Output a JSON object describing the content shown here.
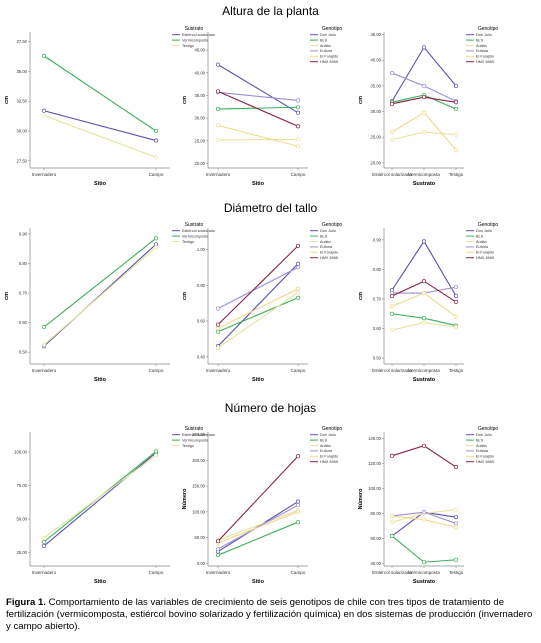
{
  "colors": {
    "estiercol": "#5a4fb0",
    "vermicomposta": "#3cae5a",
    "testigo": "#e8e29a",
    "don_julio": "#5a4fb0",
    "bls": "#3cae5a",
    "autlan": "#e8e29a",
    "euforia": "#9b8fd6",
    "el_forajido": "#f0d98a",
    "hmx": "#8a1f4a"
  },
  "rows": [
    {
      "title": "Altura de la planta"
    },
    {
      "title": "Diámetro del tallo"
    },
    {
      "title": "Número de hojas"
    }
  ],
  "caption": {
    "label": "Figura 1.",
    "text": "Comportamiento de las variables de crecimiento de seis genotipos de chile con tres tipos de tratamiento de fertilización (vermicomposta, estiércol bovino solarizado y fertilización química) en dos sistemas de producción (invernadero y campo abierto)."
  },
  "chart_data": [
    {
      "type": "line",
      "row": 0,
      "xlabel": "Sitio",
      "ylabel": "cm",
      "categories": [
        "Invernadero",
        "Campo"
      ],
      "ylim": [
        26.9,
        38.3
      ],
      "yticks": [
        27.5,
        30.0,
        32.5,
        35.0,
        37.5
      ],
      "ytick_labels": [
        "27.50",
        "30.00",
        "32.50",
        "35.00",
        "37.50"
      ],
      "legend_title": "Sustrato",
      "series": [
        {
          "name": "Estiércol solarizado",
          "color_key": "estiercol",
          "values": [
            31.7,
            29.2
          ]
        },
        {
          "name": "Vermicomposta",
          "color_key": "vermicomposta",
          "values": [
            36.3,
            30.0
          ]
        },
        {
          "name": "Testigo",
          "color_key": "testigo",
          "values": [
            31.3,
            27.8
          ]
        }
      ]
    },
    {
      "type": "line",
      "row": 0,
      "xlabel": "Sitio",
      "ylabel": "cm",
      "categories": [
        "Invernadero",
        "Campo"
      ],
      "ylim": [
        19.0,
        49.0
      ],
      "yticks": [
        20,
        25,
        30,
        35,
        40,
        45
      ],
      "ytick_labels": [
        "20.00",
        "25.00",
        "30.00",
        "35.00",
        "40.00",
        "45.00"
      ],
      "legend_title": "Genotipo",
      "series": [
        {
          "name": "Don Julio",
          "color_key": "don_julio",
          "values": [
            41.8,
            31.2
          ]
        },
        {
          "name": "BLS",
          "color_key": "bls",
          "values": [
            32.0,
            32.4
          ]
        },
        {
          "name": "Autlán",
          "color_key": "autlan",
          "values": [
            25.2,
            25.3
          ]
        },
        {
          "name": "Euforia",
          "color_key": "euforia",
          "values": [
            35.7,
            33.9
          ]
        },
        {
          "name": "El Forajido",
          "color_key": "el_forajido",
          "values": [
            28.4,
            23.8
          ]
        },
        {
          "name": "HMX 8965",
          "color_key": "hmx",
          "values": [
            35.9,
            28.2
          ]
        }
      ]
    },
    {
      "type": "line",
      "row": 0,
      "xlabel": "Sustrato",
      "ylabel": "cm",
      "categories": [
        "Estiércol solarizado",
        "Vermicomposta",
        "Testigo"
      ],
      "ylim": [
        19.0,
        45.5
      ],
      "yticks": [
        20,
        25,
        30,
        35,
        40,
        45
      ],
      "ytick_labels": [
        "20.00",
        "25.00",
        "30.00",
        "35.00",
        "40.00",
        "45.00"
      ],
      "legend_title": "Genotipo",
      "series": [
        {
          "name": "Don Julio",
          "color_key": "don_julio",
          "values": [
            32.0,
            42.5,
            35.0
          ]
        },
        {
          "name": "BLS",
          "color_key": "bls",
          "values": [
            31.8,
            33.2,
            30.5
          ]
        },
        {
          "name": "Autlán",
          "color_key": "autlan",
          "values": [
            24.5,
            26.0,
            25.5
          ]
        },
        {
          "name": "Euforia",
          "color_key": "euforia",
          "values": [
            37.5,
            35.0,
            32.0
          ]
        },
        {
          "name": "El Forajido",
          "color_key": "el_forajido",
          "values": [
            26.0,
            29.8,
            22.5
          ]
        },
        {
          "name": "HMX 8965",
          "color_key": "hmx",
          "values": [
            31.5,
            32.8,
            31.8
          ]
        }
      ]
    },
    {
      "type": "line",
      "row": 1,
      "xlabel": "Sitio",
      "ylabel": "cm",
      "categories": [
        "Invernadero",
        "Campo"
      ],
      "ylim": [
        0.46,
        0.92
      ],
      "yticks": [
        0.5,
        0.6,
        0.7,
        0.8,
        0.9
      ],
      "ytick_labels": [
        "0.50",
        "0.60",
        "0.70",
        "0.80",
        "0.90"
      ],
      "legend_title": "Sustrato",
      "series": [
        {
          "name": "Estiércol solarizado",
          "color_key": "estiercol",
          "values": [
            0.52,
            0.865
          ]
        },
        {
          "name": "Vermicomposta",
          "color_key": "vermicomposta",
          "values": [
            0.585,
            0.885
          ]
        },
        {
          "name": "Testigo",
          "color_key": "testigo",
          "values": [
            0.525,
            0.855
          ]
        }
      ]
    },
    {
      "type": "line",
      "row": 1,
      "xlabel": "Sitio",
      "ylabel": "cm",
      "categories": [
        "Invernadero",
        "Campo"
      ],
      "ylim": [
        0.36,
        1.12
      ],
      "yticks": [
        0.4,
        0.6,
        0.8,
        1.0
      ],
      "ytick_labels": [
        "0.40",
        "0.60",
        "0.80",
        "1.00"
      ],
      "legend_title": "Genotipo",
      "series": [
        {
          "name": "Don Julio",
          "color_key": "don_julio",
          "values": [
            0.46,
            0.92
          ]
        },
        {
          "name": "BLS",
          "color_key": "bls",
          "values": [
            0.54,
            0.73
          ]
        },
        {
          "name": "Autlán",
          "color_key": "autlan",
          "values": [
            0.45,
            0.76
          ]
        },
        {
          "name": "Euforia",
          "color_key": "euforia",
          "values": [
            0.67,
            0.9
          ]
        },
        {
          "name": "El Forajido",
          "color_key": "el_forajido",
          "values": [
            0.56,
            0.78
          ]
        },
        {
          "name": "HMX 8965",
          "color_key": "hmx",
          "values": [
            0.58,
            1.02
          ]
        }
      ]
    },
    {
      "type": "line",
      "row": 1,
      "xlabel": "Sustrato",
      "ylabel": "cm",
      "categories": [
        "Estiércol solarizado",
        "Vermicomposta",
        "Testigo"
      ],
      "ylim": [
        0.48,
        0.94
      ],
      "yticks": [
        0.5,
        0.6,
        0.7,
        0.8,
        0.9
      ],
      "ytick_labels": [
        "0.50",
        "0.60",
        "0.70",
        "0.80",
        "0.90"
      ],
      "legend_title": "Genotipo",
      "series": [
        {
          "name": "Don Julio",
          "color_key": "don_julio",
          "values": [
            0.73,
            0.895,
            0.71
          ]
        },
        {
          "name": "BLS",
          "color_key": "bls",
          "values": [
            0.65,
            0.635,
            0.61
          ]
        },
        {
          "name": "Autlán",
          "color_key": "autlan",
          "values": [
            0.595,
            0.62,
            0.605
          ]
        },
        {
          "name": "Euforia",
          "color_key": "euforia",
          "values": [
            0.72,
            0.72,
            0.74
          ]
        },
        {
          "name": "El Forajido",
          "color_key": "el_forajido",
          "values": [
            0.675,
            0.72,
            0.64
          ]
        },
        {
          "name": "HMX 8965",
          "color_key": "hmx",
          "values": [
            0.71,
            0.76,
            0.69
          ]
        }
      ]
    },
    {
      "type": "line",
      "row": 2,
      "xlabel": "Sitio",
      "ylabel": "",
      "categories": [
        "Invernadero",
        "Campo"
      ],
      "ylim": [
        15,
        115
      ],
      "yticks": [
        25,
        50,
        75,
        100
      ],
      "ytick_labels": [
        "25.00",
        "50.00",
        "75.00",
        "100.00"
      ],
      "legend_title": "Sustrato",
      "series": [
        {
          "name": "Estiércol solarizado",
          "color_key": "estiercol",
          "values": [
            30,
            99.5
          ]
        },
        {
          "name": "Vermicomposta",
          "color_key": "vermicomposta",
          "values": [
            33,
            100.5
          ]
        },
        {
          "name": "Testigo",
          "color_key": "testigo",
          "values": [
            36,
            97.5
          ]
        }
      ]
    },
    {
      "type": "line",
      "row": 2,
      "xlabel": "Sitio",
      "ylabel": "Número",
      "categories": [
        "Invernadero",
        "Campo"
      ],
      "ylim": [
        -5,
        255
      ],
      "yticks": [
        0,
        50,
        100,
        150,
        200,
        250
      ],
      "ytick_labels": [
        "0.00",
        "50.00",
        "100.00",
        "150.00",
        "200.00",
        "250.00"
      ],
      "legend_title": "Genotipo",
      "series": [
        {
          "name": "Don Julio",
          "color_key": "don_julio",
          "values": [
            23,
            120
          ]
        },
        {
          "name": "BLS",
          "color_key": "bls",
          "values": [
            16,
            80
          ]
        },
        {
          "name": "Autlán",
          "color_key": "autlan",
          "values": [
            45,
            103
          ]
        },
        {
          "name": "Euforia",
          "color_key": "euforia",
          "values": [
            28,
            113
          ]
        },
        {
          "name": "El Forajido",
          "color_key": "el_forajido",
          "values": [
            40,
            100
          ]
        },
        {
          "name": "HMX 8965",
          "color_key": "hmx",
          "values": [
            43,
            208
          ]
        }
      ]
    },
    {
      "type": "line",
      "row": 2,
      "xlabel": "Sustrato",
      "ylabel": "Número",
      "categories": [
        "Estiércol solarizado",
        "Vermicomposta",
        "Testigo"
      ],
      "ylim": [
        38,
        145
      ],
      "yticks": [
        40,
        60,
        80,
        100,
        120,
        140
      ],
      "ytick_labels": [
        "40.00",
        "60.00",
        "80.00",
        "100.00",
        "120.00",
        "140.00"
      ],
      "legend_title": "Genotipo",
      "series": [
        {
          "name": "Don Julio",
          "color_key": "don_julio",
          "values": [
            62,
            81,
            77
          ]
        },
        {
          "name": "BLS",
          "color_key": "bls",
          "values": [
            62,
            41,
            43
          ]
        },
        {
          "name": "Autlán",
          "color_key": "autlan",
          "values": [
            73,
            80,
            83
          ]
        },
        {
          "name": "Euforia",
          "color_key": "euforia",
          "values": [
            78,
            81,
            72
          ]
        },
        {
          "name": "El Forajido",
          "color_key": "el_forajido",
          "values": [
            78,
            75,
            69
          ]
        },
        {
          "name": "HMX 8965",
          "color_key": "hmx",
          "values": [
            126,
            134,
            117
          ]
        }
      ]
    }
  ]
}
